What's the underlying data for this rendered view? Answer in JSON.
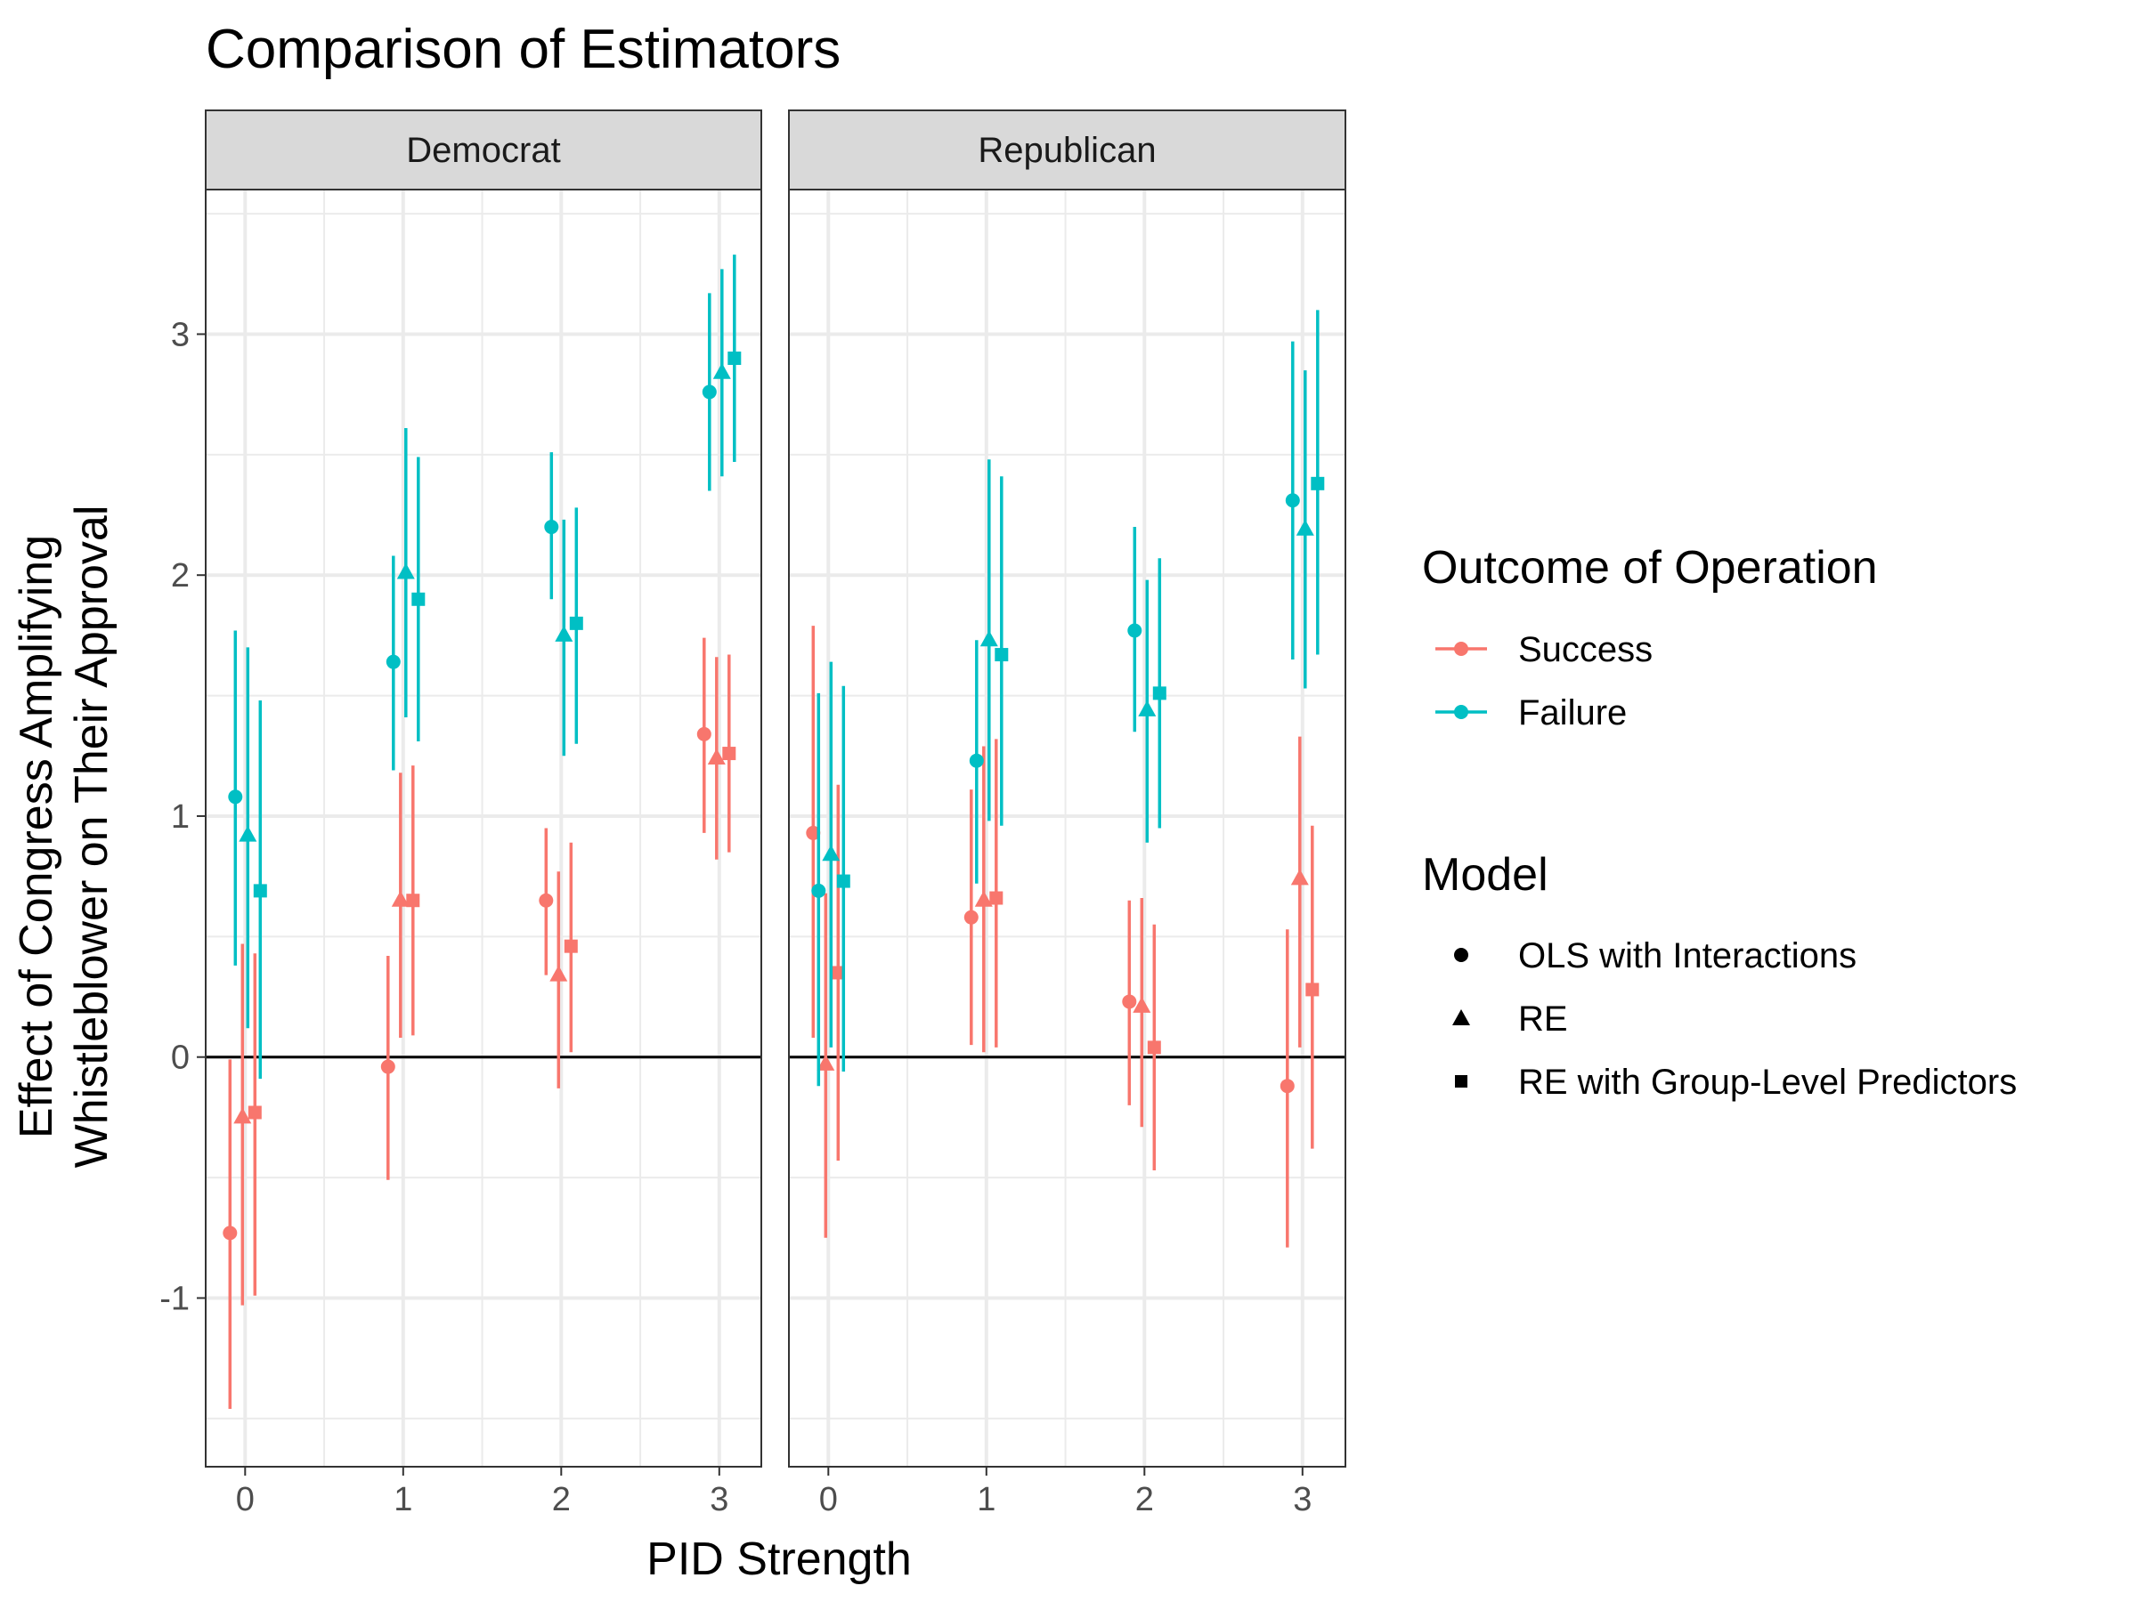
{
  "chart_data": {
    "type": "scatter",
    "title": "Comparison of Estimators",
    "xlabel": "PID Strength",
    "ylabel_lines": [
      "Effect of Congress Amplifying",
      "Whistleblower on Their Approval"
    ],
    "x_ticks": [
      "0",
      "1",
      "2",
      "3"
    ],
    "y_ticks": [
      "-1",
      "0",
      "1",
      "2",
      "3"
    ],
    "ylim": [
      -1.7,
      3.6
    ],
    "facets": [
      "Democrat",
      "Republican"
    ],
    "legend_color": {
      "title": "Outcome of Operation",
      "items": [
        {
          "label": "Success",
          "color": "#F8766D"
        },
        {
          "label": "Failure",
          "color": "#00BFC4"
        }
      ]
    },
    "legend_shape": {
      "title": "Model",
      "items": [
        {
          "label": "OLS with Interactions",
          "shape": "circle"
        },
        {
          "label": "RE",
          "shape": "triangle"
        },
        {
          "label": "RE with Group-Level Predictors",
          "shape": "square"
        }
      ]
    },
    "series": [
      {
        "facet": "Democrat",
        "outcome": "Success",
        "model": "OLS with Interactions",
        "points": [
          {
            "x": 0,
            "y": -0.73,
            "lo": -1.46,
            "hi": -0.01
          },
          {
            "x": 1,
            "y": -0.04,
            "lo": -0.51,
            "hi": 0.42
          },
          {
            "x": 2,
            "y": 0.65,
            "lo": 0.34,
            "hi": 0.95
          },
          {
            "x": 3,
            "y": 1.34,
            "lo": 0.93,
            "hi": 1.74
          }
        ]
      },
      {
        "facet": "Democrat",
        "outcome": "Success",
        "model": "RE",
        "points": [
          {
            "x": 0,
            "y": -0.25,
            "lo": -1.03,
            "hi": 0.47
          },
          {
            "x": 1,
            "y": 0.65,
            "lo": 0.08,
            "hi": 1.18
          },
          {
            "x": 2,
            "y": 0.34,
            "lo": -0.13,
            "hi": 0.77
          },
          {
            "x": 3,
            "y": 1.24,
            "lo": 0.82,
            "hi": 1.66
          }
        ]
      },
      {
        "facet": "Democrat",
        "outcome": "Success",
        "model": "RE with Group-Level Predictors",
        "points": [
          {
            "x": 0,
            "y": -0.23,
            "lo": -0.99,
            "hi": 0.43
          },
          {
            "x": 1,
            "y": 0.65,
            "lo": 0.09,
            "hi": 1.21
          },
          {
            "x": 2,
            "y": 0.46,
            "lo": 0.02,
            "hi": 0.89
          },
          {
            "x": 3,
            "y": 1.26,
            "lo": 0.85,
            "hi": 1.67
          }
        ]
      },
      {
        "facet": "Democrat",
        "outcome": "Failure",
        "model": "OLS with Interactions",
        "points": [
          {
            "x": 0,
            "y": 1.08,
            "lo": 0.38,
            "hi": 1.77
          },
          {
            "x": 1,
            "y": 1.64,
            "lo": 1.19,
            "hi": 2.08
          },
          {
            "x": 2,
            "y": 2.2,
            "lo": 1.9,
            "hi": 2.51
          },
          {
            "x": 3,
            "y": 2.76,
            "lo": 2.35,
            "hi": 3.17
          }
        ]
      },
      {
        "facet": "Democrat",
        "outcome": "Failure",
        "model": "RE",
        "points": [
          {
            "x": 0,
            "y": 0.92,
            "lo": 0.12,
            "hi": 1.7
          },
          {
            "x": 1,
            "y": 2.01,
            "lo": 1.41,
            "hi": 2.61
          },
          {
            "x": 2,
            "y": 1.75,
            "lo": 1.25,
            "hi": 2.23
          },
          {
            "x": 3,
            "y": 2.84,
            "lo": 2.41,
            "hi": 3.27
          }
        ]
      },
      {
        "facet": "Democrat",
        "outcome": "Failure",
        "model": "RE with Group-Level Predictors",
        "points": [
          {
            "x": 0,
            "y": 0.69,
            "lo": -0.09,
            "hi": 1.48
          },
          {
            "x": 1,
            "y": 1.9,
            "lo": 1.31,
            "hi": 2.49
          },
          {
            "x": 2,
            "y": 1.8,
            "lo": 1.3,
            "hi": 2.28
          },
          {
            "x": 3,
            "y": 2.9,
            "lo": 2.47,
            "hi": 3.33
          }
        ]
      },
      {
        "facet": "Republican",
        "outcome": "Success",
        "model": "OLS with Interactions",
        "points": [
          {
            "x": 0,
            "y": 0.93,
            "lo": 0.08,
            "hi": 1.79
          },
          {
            "x": 1,
            "y": 0.58,
            "lo": 0.05,
            "hi": 1.11
          },
          {
            "x": 2,
            "y": 0.23,
            "lo": -0.2,
            "hi": 0.65
          },
          {
            "x": 3,
            "y": -0.12,
            "lo": -0.79,
            "hi": 0.53
          }
        ]
      },
      {
        "facet": "Republican",
        "outcome": "Success",
        "model": "RE",
        "points": [
          {
            "x": 0,
            "y": -0.03,
            "lo": -0.75,
            "hi": 0.68
          },
          {
            "x": 1,
            "y": 0.65,
            "lo": 0.02,
            "hi": 1.29
          },
          {
            "x": 2,
            "y": 0.21,
            "lo": -0.29,
            "hi": 0.66
          },
          {
            "x": 3,
            "y": 0.74,
            "lo": 0.04,
            "hi": 1.33
          }
        ]
      },
      {
        "facet": "Republican",
        "outcome": "Success",
        "model": "RE with Group-Level Predictors",
        "points": [
          {
            "x": 0,
            "y": 0.35,
            "lo": -0.43,
            "hi": 1.13
          },
          {
            "x": 1,
            "y": 0.66,
            "lo": 0.04,
            "hi": 1.32
          },
          {
            "x": 2,
            "y": 0.04,
            "lo": -0.47,
            "hi": 0.55
          },
          {
            "x": 3,
            "y": 0.28,
            "lo": -0.38,
            "hi": 0.96
          }
        ]
      },
      {
        "facet": "Republican",
        "outcome": "Failure",
        "model": "OLS with Interactions",
        "points": [
          {
            "x": 0,
            "y": 0.69,
            "lo": -0.12,
            "hi": 1.51
          },
          {
            "x": 1,
            "y": 1.23,
            "lo": 0.72,
            "hi": 1.73
          },
          {
            "x": 2,
            "y": 1.77,
            "lo": 1.35,
            "hi": 2.2
          },
          {
            "x": 3,
            "y": 2.31,
            "lo": 1.65,
            "hi": 2.97
          }
        ]
      },
      {
        "facet": "Republican",
        "outcome": "Failure",
        "model": "RE",
        "points": [
          {
            "x": 0,
            "y": 0.84,
            "lo": 0.04,
            "hi": 1.64
          },
          {
            "x": 1,
            "y": 1.73,
            "lo": 0.98,
            "hi": 2.48
          },
          {
            "x": 2,
            "y": 1.44,
            "lo": 0.89,
            "hi": 1.98
          },
          {
            "x": 3,
            "y": 2.19,
            "lo": 1.53,
            "hi": 2.85
          }
        ]
      },
      {
        "facet": "Republican",
        "outcome": "Failure",
        "model": "RE with Group-Level Predictors",
        "points": [
          {
            "x": 0,
            "y": 0.73,
            "lo": -0.06,
            "hi": 1.54
          },
          {
            "x": 1,
            "y": 1.67,
            "lo": 0.96,
            "hi": 2.41
          },
          {
            "x": 2,
            "y": 1.51,
            "lo": 0.95,
            "hi": 2.07
          },
          {
            "x": 3,
            "y": 2.38,
            "lo": 1.67,
            "hi": 3.1
          }
        ]
      }
    ]
  }
}
